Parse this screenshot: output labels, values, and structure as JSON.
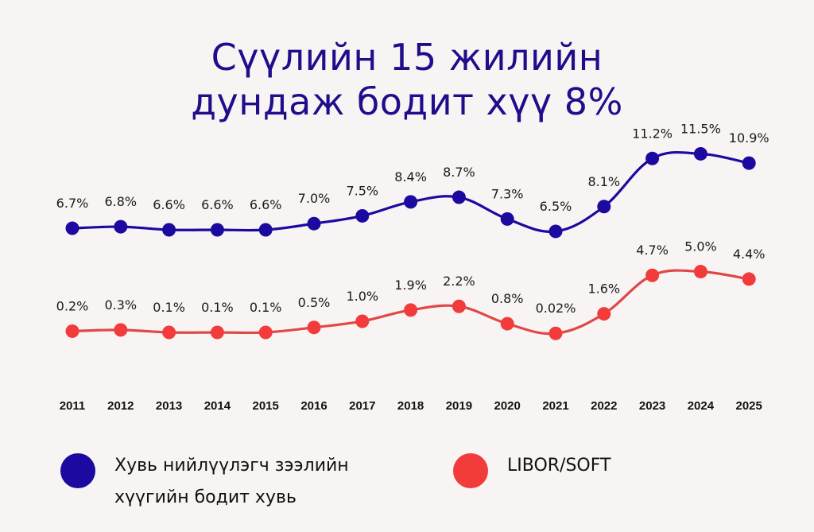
{
  "title": {
    "line1": "Сүүлийн 15 жилийн",
    "line2": "дундаж бодит хүү 8%"
  },
  "colors": {
    "background": "#f9f4f4",
    "title": "#1f0d8c",
    "series_blue": "#1c0aa0",
    "series_red": "#f23b3b",
    "series_red_line": "#e04848"
  },
  "legend": [
    {
      "name": "Хувь нийлүүлэгч зээлийн хүүгийн бодит хувь",
      "line1": "Хувь нийлүүлэгч зээлийн",
      "line2": "хүүгийн бодит хувь",
      "color": "#1c0aa0"
    },
    {
      "name": "LIBOR/SOFT",
      "line1": "LIBOR/SOFT",
      "color": "#f23b3b"
    }
  ],
  "chart_data": {
    "type": "line",
    "title": "Сүүлийн 15 жилийн дундаж бодит хүү 8%",
    "xlabel": "",
    "ylabel": "",
    "grid": false,
    "legend_position": "bottom",
    "categories": [
      "2011",
      "2012",
      "2013",
      "2014",
      "2015",
      "2016",
      "2017",
      "2018",
      "2019",
      "2020",
      "2021",
      "2022",
      "2023",
      "2024",
      "2025"
    ],
    "series": [
      {
        "name": "Хувь нийлүүлэгч зээлийн хүүгийн бодит хувь",
        "color": "#1c0aa0",
        "values": [
          6.7,
          6.8,
          6.6,
          6.6,
          6.6,
          7.0,
          7.5,
          8.4,
          8.7,
          7.3,
          6.5,
          8.1,
          11.2,
          11.5,
          10.9
        ],
        "labels": [
          "6.7%",
          "6.8%",
          "6.6%",
          "6.6%",
          "6.6%",
          "7.0%",
          "7.5%",
          "8.4%",
          "8.7%",
          "7.3%",
          "6.5%",
          "8.1%",
          "11.2%",
          "11.5%",
          "10.9%"
        ]
      },
      {
        "name": "LIBOR/SOFT",
        "color": "#f23b3b",
        "values": [
          0.2,
          0.3,
          0.1,
          0.1,
          0.1,
          0.5,
          1.0,
          1.9,
          2.2,
          0.8,
          0.02,
          1.6,
          4.7,
          5.0,
          4.4
        ],
        "labels": [
          "0.2%",
          "0.3%",
          "0.1%",
          "0.1%",
          "0.1%",
          "0.5%",
          "1.0%",
          "1.9%",
          "2.2%",
          "0.8%",
          "0.02%",
          "1.6%",
          "4.7%",
          "5.0%",
          "4.4%"
        ]
      }
    ]
  }
}
